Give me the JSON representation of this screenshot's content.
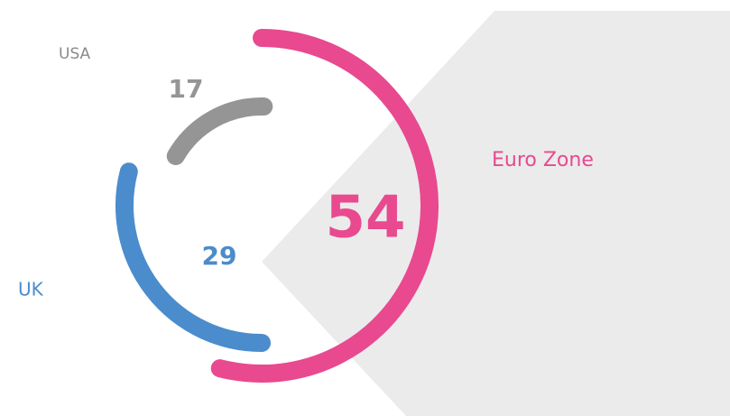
{
  "chart_data": {
    "type": "radial_bar",
    "series": [
      {
        "name": "Euro Zone",
        "color": "#e8498f",
        "value": 54
      },
      {
        "name": "UK",
        "color": "#4b8ccc",
        "value": 29
      },
      {
        "name": "USA",
        "color": "#959595",
        "value": 17
      }
    ]
  }
}
